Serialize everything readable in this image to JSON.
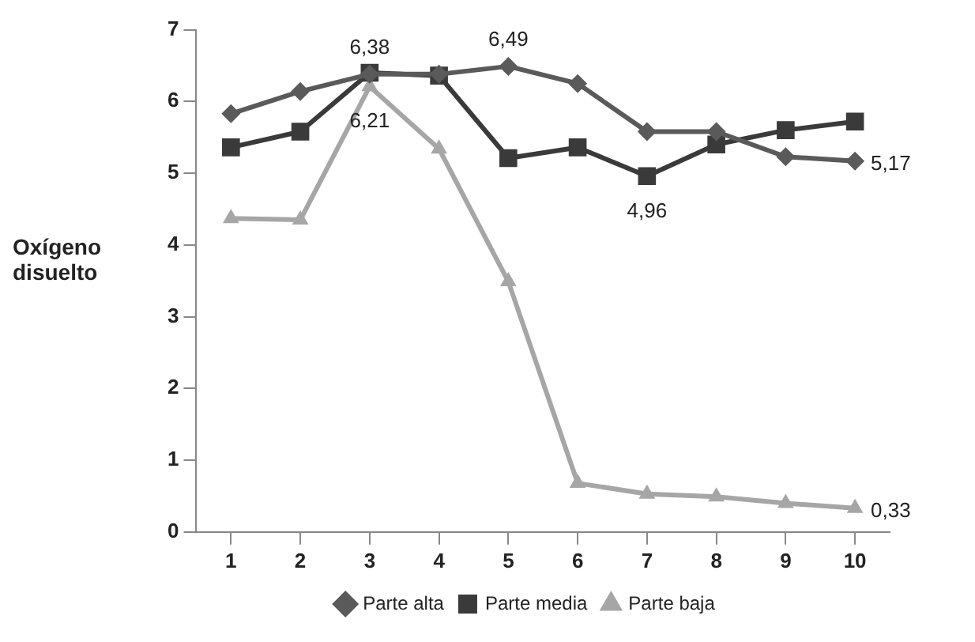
{
  "chart_data": {
    "type": "line",
    "ylabel": "Oxígeno disuelto",
    "categories": [
      "1",
      "2",
      "3",
      "4",
      "5",
      "6",
      "7",
      "8",
      "9",
      "10"
    ],
    "series": [
      {
        "name": "Parte alta",
        "color": "#5a5a5a",
        "marker": "diamond",
        "values": [
          5.83,
          6.14,
          6.38,
          6.38,
          6.49,
          6.25,
          5.58,
          5.58,
          5.23,
          5.17
        ],
        "value_labels": [
          null,
          null,
          "6,38",
          null,
          "6,49",
          null,
          null,
          null,
          null,
          "5,17"
        ]
      },
      {
        "name": "Parte media",
        "color": "#3a3a3a",
        "marker": "square",
        "values": [
          5.36,
          5.58,
          6.4,
          6.36,
          5.21,
          5.36,
          4.96,
          5.4,
          5.6,
          5.72
        ],
        "value_labels": [
          null,
          null,
          null,
          null,
          null,
          null,
          "4,96",
          null,
          null,
          null
        ]
      },
      {
        "name": "Parte baja",
        "color": "#a6a6a6",
        "marker": "triangle",
        "values": [
          4.37,
          4.35,
          6.21,
          5.34,
          3.49,
          0.68,
          0.53,
          0.49,
          0.4,
          0.33
        ],
        "value_labels": [
          null,
          null,
          "6,21",
          null,
          null,
          null,
          null,
          null,
          null,
          "0,33"
        ]
      }
    ],
    "ylim": [
      0,
      7
    ],
    "yticks": [
      0,
      1,
      2,
      3,
      4,
      5,
      6,
      7
    ],
    "grid": false,
    "legend": "bottom",
    "line_style": "solid"
  }
}
